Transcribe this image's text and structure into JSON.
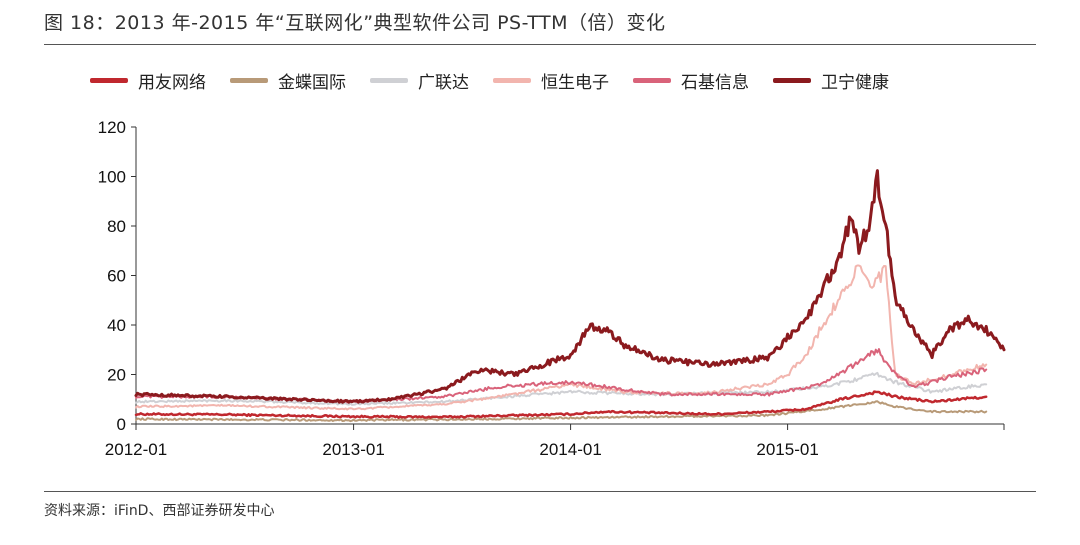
{
  "title": "图 18：2013 年-2015 年“互联网化”典型软件公司 PS-TTM（倍）变化",
  "source": "资料来源：iFinD、西部证券研发中心",
  "chart_data": {
    "type": "line",
    "title": "图 18：2013 年-2015 年“互联网化”典型软件公司 PS-TTM（倍）变化",
    "xlabel": "",
    "ylabel": "",
    "x_range": [
      "2012-01",
      "2015-12"
    ],
    "x_ticks": [
      "2012-01",
      "2013-01",
      "2014-01",
      "2015-01"
    ],
    "ylim": [
      0,
      120
    ],
    "y_ticks": [
      0,
      20,
      40,
      60,
      80,
      100,
      120
    ],
    "grid": "none",
    "legend": "top",
    "series": [
      {
        "name": "用友网络",
        "color": "#c0282e",
        "width": 2.5,
        "z": 4,
        "points": [
          [
            "2012-01",
            4
          ],
          [
            "2012-06",
            3.8
          ],
          [
            "2013-01",
            3
          ],
          [
            "2013-06",
            2.8
          ],
          [
            "2014-01",
            4
          ],
          [
            "2014-03",
            5
          ],
          [
            "2014-06",
            4.5
          ],
          [
            "2014-09",
            4
          ],
          [
            "2014-12",
            5
          ],
          [
            "2015-02",
            6
          ],
          [
            "2015-04",
            10
          ],
          [
            "2015-06",
            13
          ],
          [
            "2015-07",
            11
          ],
          [
            "2015-09",
            9
          ],
          [
            "2015-12",
            11
          ]
        ]
      },
      {
        "name": "金蝶国际",
        "color": "#b89a78",
        "width": 2,
        "z": 2,
        "points": [
          [
            "2012-01",
            2
          ],
          [
            "2012-06",
            1.8
          ],
          [
            "2013-01",
            1.5
          ],
          [
            "2013-06",
            1.8
          ],
          [
            "2014-01",
            2.5
          ],
          [
            "2014-06",
            3
          ],
          [
            "2014-12",
            3.5
          ],
          [
            "2015-03",
            6
          ],
          [
            "2015-06",
            9
          ],
          [
            "2015-07",
            7
          ],
          [
            "2015-09",
            5
          ],
          [
            "2015-12",
            5
          ]
        ]
      },
      {
        "name": "广联达",
        "color": "#cfd0d4",
        "width": 2,
        "z": 1,
        "points": [
          [
            "2012-01",
            9
          ],
          [
            "2012-06",
            9.5
          ],
          [
            "2013-01",
            8
          ],
          [
            "2013-06",
            9
          ],
          [
            "2014-01",
            13
          ],
          [
            "2014-06",
            12
          ],
          [
            "2014-12",
            13
          ],
          [
            "2015-03",
            15
          ],
          [
            "2015-06",
            20
          ],
          [
            "2015-07",
            17
          ],
          [
            "2015-09",
            13
          ],
          [
            "2015-12",
            16
          ]
        ]
      },
      {
        "name": "恒生电子",
        "color": "#f2b5ae",
        "width": 2,
        "z": 3,
        "points": [
          [
            "2012-01",
            7
          ],
          [
            "2012-06",
            7.5
          ],
          [
            "2013-01",
            6
          ],
          [
            "2013-06",
            8
          ],
          [
            "2013-09",
            11
          ],
          [
            "2014-01",
            16
          ],
          [
            "2014-04",
            13
          ],
          [
            "2014-08",
            12
          ],
          [
            "2014-12",
            16
          ],
          [
            "2015-01",
            20
          ],
          [
            "2015-02",
            28
          ],
          [
            "2015-03",
            40
          ],
          [
            "2015-04",
            52
          ],
          [
            "2015-05",
            64
          ],
          [
            "2015-05-20",
            55
          ],
          [
            "2015-06",
            58
          ],
          [
            "2015-06-15",
            62
          ],
          [
            "2015-07",
            20
          ],
          [
            "2015-08",
            16
          ],
          [
            "2015-10",
            20
          ],
          [
            "2015-12",
            24
          ]
        ]
      },
      {
        "name": "石基信息",
        "color": "#d9637a",
        "width": 2,
        "z": 5,
        "points": [
          [
            "2012-01",
            11
          ],
          [
            "2012-06",
            11
          ],
          [
            "2013-01",
            9
          ],
          [
            "2013-06",
            11
          ],
          [
            "2013-09",
            15
          ],
          [
            "2014-01",
            17
          ],
          [
            "2014-06",
            12
          ],
          [
            "2014-12",
            12
          ],
          [
            "2015-03",
            16
          ],
          [
            "2015-05",
            25
          ],
          [
            "2015-06",
            30
          ],
          [
            "2015-07",
            20
          ],
          [
            "2015-08",
            15
          ],
          [
            "2015-10",
            19
          ],
          [
            "2015-12",
            22
          ]
        ]
      },
      {
        "name": "卫宁健康",
        "color": "#8b1a1e",
        "width": 3,
        "z": 6,
        "points": [
          [
            "2012-01",
            12
          ],
          [
            "2012-06",
            11
          ],
          [
            "2013-01",
            9
          ],
          [
            "2013-03",
            10
          ],
          [
            "2013-06",
            14
          ],
          [
            "2013-08",
            22
          ],
          [
            "2013-10",
            20
          ],
          [
            "2014-01",
            28
          ],
          [
            "2014-02",
            39
          ],
          [
            "2014-03",
            38
          ],
          [
            "2014-04",
            32
          ],
          [
            "2014-06",
            26
          ],
          [
            "2014-09",
            24
          ],
          [
            "2014-12",
            27
          ],
          [
            "2015-01",
            35
          ],
          [
            "2015-02",
            42
          ],
          [
            "2015-03",
            55
          ],
          [
            "2015-04",
            68
          ],
          [
            "2015-04-15",
            82
          ],
          [
            "2015-05",
            72
          ],
          [
            "2015-05-15",
            78
          ],
          [
            "2015-06",
            99
          ],
          [
            "2015-06-15",
            80
          ],
          [
            "2015-07",
            50
          ],
          [
            "2015-08",
            38
          ],
          [
            "2015-09",
            28
          ],
          [
            "2015-10",
            38
          ],
          [
            "2015-11",
            42
          ],
          [
            "2015-12",
            38
          ],
          [
            "2015-12-31",
            30
          ]
        ]
      }
    ]
  }
}
